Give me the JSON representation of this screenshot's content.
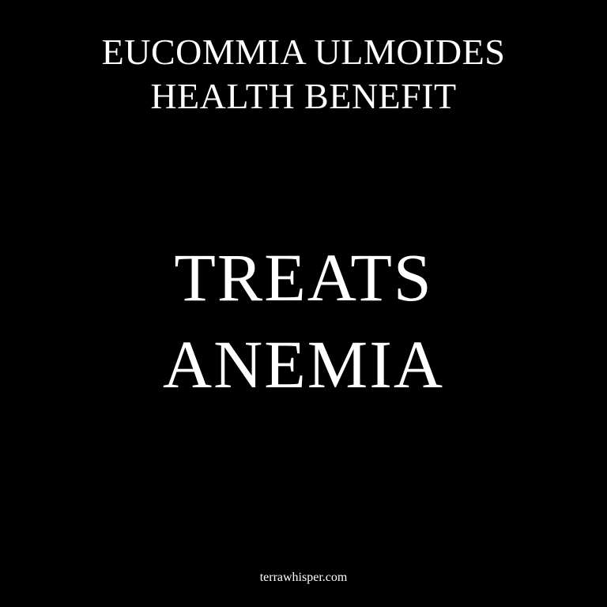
{
  "header": {
    "lines": [
      "EUCOMMIA ULMOIDES",
      "HEALTH BENEFIT"
    ]
  },
  "headline": {
    "lines": [
      "TREATS",
      "ANEMIA"
    ]
  },
  "footer": {
    "site": "terrawhisper.com"
  },
  "colors": {
    "background": "#000000",
    "text": "#ffffff"
  }
}
